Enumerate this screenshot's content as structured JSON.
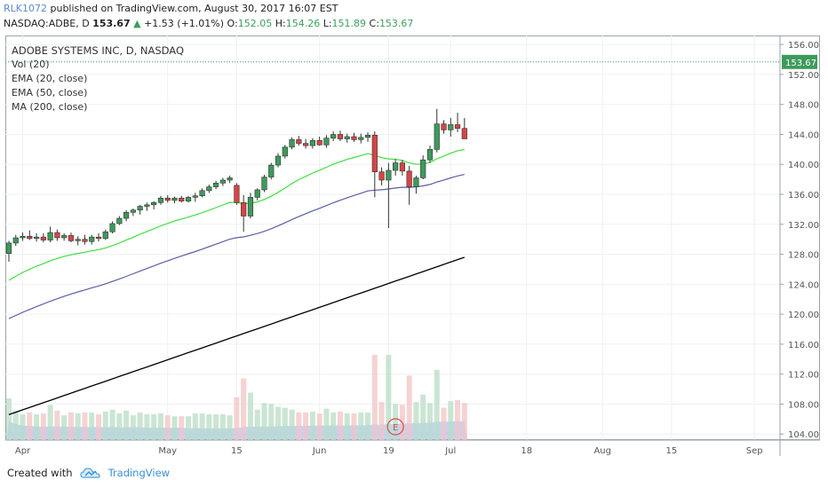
{
  "header": {
    "user": "RLK1072",
    "published_text": "published on TradingView.com, August 30, 2017 16:07 EST",
    "symbol_line": "NASDAQ:ADBE, D",
    "last_price": "153.67",
    "change_arrow": "▲",
    "change_text": "+1.53 (+1.01%)",
    "open_label": "O:",
    "open_value": "152.05",
    "high_label": "H:",
    "high_value": "154.26",
    "low_label": "L:",
    "low_value": "151.89",
    "close_label": "C:",
    "close_value": "153.67"
  },
  "legend": {
    "title": "ADOBE SYSTEMS INC, D, NASDAQ",
    "vol": "Vol (20)",
    "ema20": "EMA (20, close)",
    "ema50": "EMA (50, close)",
    "ma200": "MA (200, close)"
  },
  "footer": {
    "created_with": "Created with",
    "brand": "TradingView"
  },
  "colors": {
    "up": "#3e9a5b",
    "down": "#d64545",
    "ema20": "#3ee03e",
    "ema50": "#5a5ea6",
    "ma200": "#000000",
    "vol_up": "#b8ddc4",
    "vol_down": "#f1c4c4",
    "vol_ma": "#7b9ee8"
  },
  "chart_data": {
    "type": "candlestick",
    "title": "ADOBE SYSTEMS INC, D, NASDAQ",
    "y_ticks": [
      104,
      108,
      112,
      116,
      120,
      124,
      128,
      132,
      136,
      140,
      144,
      148,
      152,
      156
    ],
    "ylim": [
      103.2,
      157.2
    ],
    "x_labels": [
      {
        "label": "Apr",
        "idx": 2
      },
      {
        "label": "May",
        "idx": 23
      },
      {
        "label": "15",
        "idx": 33
      },
      {
        "label": "Jun",
        "idx": 45
      },
      {
        "label": "19",
        "idx": 55
      },
      {
        "label": "Jul",
        "idx": 64
      },
      {
        "label": "18",
        "idx": 75
      },
      {
        "label": "Aug",
        "idx": 86
      },
      {
        "label": "15",
        "idx": 96
      },
      {
        "label": "Sep",
        "idx": 108
      }
    ],
    "last_price_label": "153.67",
    "earnings_marker": {
      "label": "E",
      "idx": 56
    },
    "candles": [
      [
        128.1,
        129.8,
        127.0,
        129.5
      ],
      [
        129.5,
        130.6,
        129.1,
        130.2
      ],
      [
        130.2,
        130.9,
        129.8,
        130.4
      ],
      [
        130.4,
        131.2,
        129.9,
        130.1
      ],
      [
        130.1,
        130.8,
        129.7,
        130.3
      ],
      [
        130.3,
        130.8,
        129.6,
        129.9
      ],
      [
        129.9,
        131.7,
        129.6,
        130.9
      ],
      [
        130.9,
        131.3,
        129.8,
        130.2
      ],
      [
        130.2,
        130.8,
        129.8,
        130.5
      ],
      [
        130.5,
        130.9,
        129.6,
        129.8
      ],
      [
        129.8,
        130.4,
        129.2,
        130.0
      ],
      [
        130.0,
        130.6,
        129.3,
        129.7
      ],
      [
        129.7,
        130.6,
        129.3,
        130.3
      ],
      [
        130.3,
        130.8,
        129.7,
        130.1
      ],
      [
        130.1,
        131.3,
        129.9,
        131.0
      ],
      [
        131.0,
        132.4,
        130.8,
        132.1
      ],
      [
        132.1,
        133.1,
        131.9,
        132.8
      ],
      [
        132.8,
        133.9,
        132.4,
        133.6
      ],
      [
        133.6,
        134.1,
        133.1,
        133.9
      ],
      [
        133.9,
        134.6,
        133.3,
        134.4
      ],
      [
        134.4,
        134.9,
        133.8,
        134.6
      ],
      [
        134.6,
        135.1,
        134.0,
        134.9
      ],
      [
        134.9,
        135.8,
        134.6,
        135.5
      ],
      [
        135.5,
        135.9,
        134.9,
        135.2
      ],
      [
        135.2,
        135.7,
        134.8,
        135.5
      ],
      [
        135.5,
        135.8,
        134.9,
        135.1
      ],
      [
        135.1,
        135.8,
        134.9,
        135.6
      ],
      [
        135.6,
        136.2,
        135.0,
        135.8
      ],
      [
        135.8,
        136.8,
        135.6,
        136.5
      ],
      [
        136.5,
        137.3,
        136.2,
        137.0
      ],
      [
        137.0,
        137.8,
        136.7,
        137.5
      ],
      [
        137.5,
        138.2,
        137.1,
        137.9
      ],
      [
        137.9,
        138.5,
        137.5,
        138.2
      ],
      [
        137.2,
        137.5,
        134.6,
        134.9
      ],
      [
        134.9,
        135.9,
        131.0,
        133.1
      ],
      [
        133.1,
        136.2,
        132.8,
        135.6
      ],
      [
        135.6,
        136.8,
        135.2,
        136.6
      ],
      [
        136.6,
        138.6,
        136.3,
        138.3
      ],
      [
        138.3,
        140.2,
        138.0,
        139.9
      ],
      [
        139.9,
        141.5,
        139.6,
        141.1
      ],
      [
        141.1,
        142.6,
        140.8,
        142.3
      ],
      [
        142.3,
        143.6,
        142.0,
        143.3
      ],
      [
        143.3,
        143.8,
        142.5,
        142.8
      ],
      [
        142.8,
        143.4,
        142.1,
        142.5
      ],
      [
        142.5,
        143.5,
        142.1,
        143.2
      ],
      [
        143.2,
        143.7,
        142.5,
        142.6
      ],
      [
        142.6,
        143.9,
        142.2,
        143.5
      ],
      [
        143.5,
        144.4,
        143.1,
        144.0
      ],
      [
        144.0,
        144.5,
        143.1,
        143.4
      ],
      [
        143.4,
        144.1,
        142.9,
        143.7
      ],
      [
        143.7,
        144.2,
        143.0,
        143.3
      ],
      [
        143.3,
        144.1,
        142.8,
        143.6
      ],
      [
        143.6,
        144.3,
        143.0,
        143.9
      ],
      [
        143.9,
        144.4,
        135.6,
        139.0
      ],
      [
        139.0,
        139.6,
        137.2,
        137.9
      ],
      [
        137.9,
        140.2,
        131.5,
        139.2
      ],
      [
        139.2,
        140.7,
        138.5,
        140.2
      ],
      [
        140.2,
        140.6,
        138.5,
        139.1
      ],
      [
        139.1,
        139.8,
        134.6,
        137.0
      ],
      [
        137.0,
        138.5,
        136.1,
        138.2
      ],
      [
        138.2,
        141.2,
        138.0,
        140.6
      ],
      [
        140.6,
        142.5,
        140.2,
        142.0
      ],
      [
        142.0,
        147.4,
        141.6,
        145.4
      ],
      [
        145.4,
        145.9,
        144.1,
        144.6
      ],
      [
        144.6,
        146.2,
        143.7,
        145.3
      ],
      [
        145.3,
        146.9,
        144.3,
        144.8
      ],
      [
        144.8,
        146.2,
        143.9,
        143.4
      ]
    ]
  }
}
